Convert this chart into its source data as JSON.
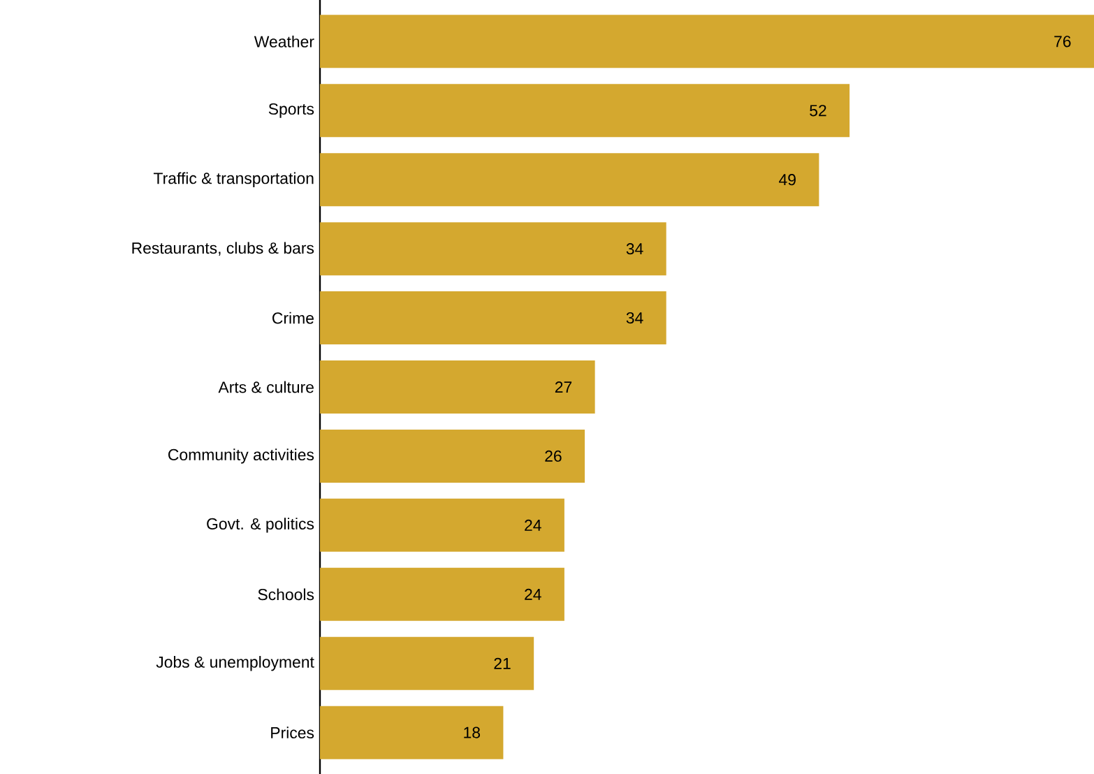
{
  "chart_data": {
    "type": "bar",
    "orientation": "horizontal",
    "categories": [
      "Weather",
      "Sports",
      "Traffic & transportation",
      "Restaurants, clubs & bars",
      "Crime",
      "Arts & culture",
      "Community activities",
      "Govt. & politics",
      "Schools",
      "Jobs & unemployment",
      "Prices"
    ],
    "values": [
      76,
      52,
      49,
      34,
      34,
      27,
      26,
      24,
      24,
      21,
      18
    ],
    "color": "#d4a82f",
    "data_labels": true
  }
}
